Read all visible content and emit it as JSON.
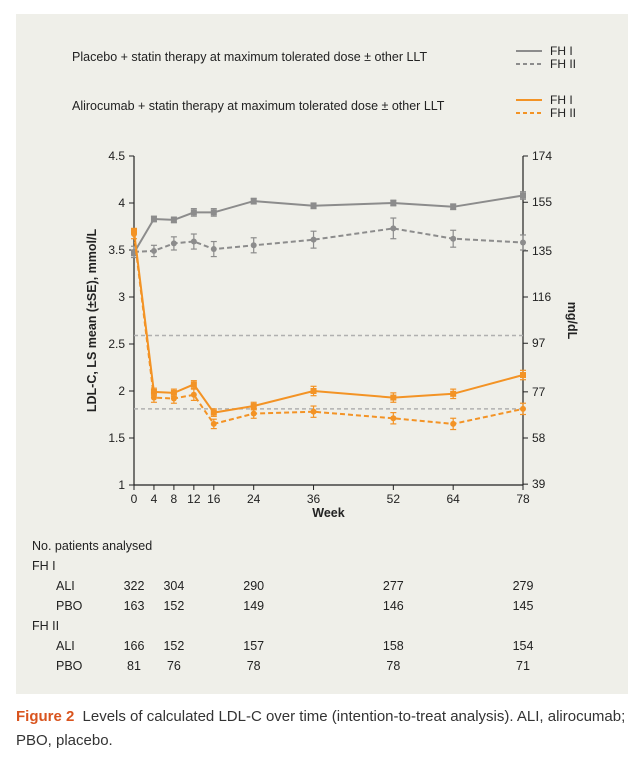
{
  "caption": {
    "label": "Figure 2",
    "text": "Levels of calculated LDL-C over time (intention-to-treat analysis). ALI, alirocumab; PBO, placebo."
  },
  "legend": {
    "groups": [
      {
        "label": "Placebo + statin therapy at maximum tolerated dose ± other LLT",
        "color": "#8c8c8c",
        "entries": [
          {
            "name": "FH I",
            "style": "solid"
          },
          {
            "name": "FH II",
            "style": "dashed"
          }
        ]
      },
      {
        "label": "Alirocumab + statin therapy at maximum tolerated dose ± other LLT",
        "color": "#f39325",
        "entries": [
          {
            "name": "FH I",
            "style": "solid"
          },
          {
            "name": "FH II",
            "style": "dashed"
          }
        ]
      }
    ]
  },
  "chart_data": {
    "type": "line",
    "xlabel": "Week",
    "ylabel": "LDL-C, LS mean (±SE), mmol/L",
    "y2label": "mg/dL",
    "xlim": [
      0,
      78
    ],
    "ylim": [
      1,
      4.5
    ],
    "x_ticks": [
      0,
      4,
      8,
      12,
      16,
      24,
      36,
      52,
      64,
      78
    ],
    "y_ticks": [
      1,
      1.5,
      2,
      2.5,
      3,
      3.5,
      4,
      4.5
    ],
    "y_tick_labels": [
      "1",
      "1.5",
      "2",
      "2.5",
      "3",
      "3.5",
      "4",
      "4.5"
    ],
    "y2_ticks": [
      {
        "value": 1.009,
        "label": "39"
      },
      {
        "value": 1.5,
        "label": "58"
      },
      {
        "value": 1.991,
        "label": "77"
      },
      {
        "value": 2.508,
        "label": "97"
      },
      {
        "value": 3.0,
        "label": "116"
      },
      {
        "value": 3.491,
        "label": "135"
      },
      {
        "value": 4.008,
        "label": "155"
      },
      {
        "value": 4.5,
        "label": "174"
      }
    ],
    "reference_lines": [
      {
        "y": 2.59,
        "color": "#b0b0b0"
      },
      {
        "y": 1.81,
        "color": "#b0b0b0"
      }
    ],
    "series": [
      {
        "group": "Placebo",
        "name": "FH I",
        "color": "#8c8c8c",
        "style": "solid",
        "x": [
          0,
          4,
          8,
          12,
          16,
          24,
          36,
          52,
          64,
          78
        ],
        "y": [
          3.47,
          3.83,
          3.82,
          3.9,
          3.9,
          4.02,
          3.97,
          4.0,
          3.96,
          4.08
        ],
        "se": [
          0.03,
          0.03,
          0.03,
          0.04,
          0.04,
          0.03,
          0.03,
          0.03,
          0.03,
          0.04
        ]
      },
      {
        "group": "Placebo",
        "name": "FH II",
        "color": "#8c8c8c",
        "style": "dashed",
        "x": [
          0,
          4,
          8,
          12,
          16,
          24,
          36,
          52,
          64,
          78
        ],
        "y": [
          3.48,
          3.49,
          3.57,
          3.59,
          3.51,
          3.55,
          3.61,
          3.73,
          3.62,
          3.58
        ],
        "se": [
          0.06,
          0.06,
          0.07,
          0.08,
          0.08,
          0.08,
          0.09,
          0.11,
          0.09,
          0.08
        ]
      },
      {
        "group": "Alirocumab",
        "name": "FH I",
        "color": "#f39325",
        "style": "solid",
        "x": [
          0,
          4,
          8,
          12,
          16,
          24,
          36,
          52,
          64,
          78
        ],
        "y": [
          3.7,
          1.99,
          1.98,
          2.07,
          1.77,
          1.84,
          2.0,
          1.93,
          1.97,
          2.17
        ],
        "se": [
          0.03,
          0.04,
          0.04,
          0.04,
          0.04,
          0.04,
          0.05,
          0.05,
          0.05,
          0.05
        ]
      },
      {
        "group": "Alirocumab",
        "name": "FH II",
        "color": "#f39325",
        "style": "dashed",
        "x": [
          0,
          4,
          8,
          12,
          16,
          24,
          36,
          52,
          64,
          78
        ],
        "y": [
          3.67,
          1.93,
          1.92,
          1.96,
          1.65,
          1.76,
          1.78,
          1.71,
          1.65,
          1.81
        ],
        "se": [
          0.05,
          0.05,
          0.05,
          0.06,
          0.05,
          0.05,
          0.06,
          0.06,
          0.06,
          0.06
        ]
      }
    ]
  },
  "patients_table": {
    "title": "No. patients analysed",
    "weeks": [
      0,
      8,
      24,
      52,
      78
    ],
    "sections": [
      {
        "name": "FH I",
        "rows": [
          {
            "label": "ALI",
            "values": [
              "322",
              "304",
              "290",
              "277",
              "279"
            ]
          },
          {
            "label": "PBO",
            "values": [
              "163",
              "152",
              "149",
              "146",
              "145"
            ]
          }
        ]
      },
      {
        "name": "FH II",
        "rows": [
          {
            "label": "ALI",
            "values": [
              "166",
              "152",
              "157",
              "158",
              "154"
            ]
          },
          {
            "label": "PBO",
            "values": [
              "81",
              "76",
              "78",
              "78",
              "71"
            ]
          }
        ]
      }
    ]
  }
}
